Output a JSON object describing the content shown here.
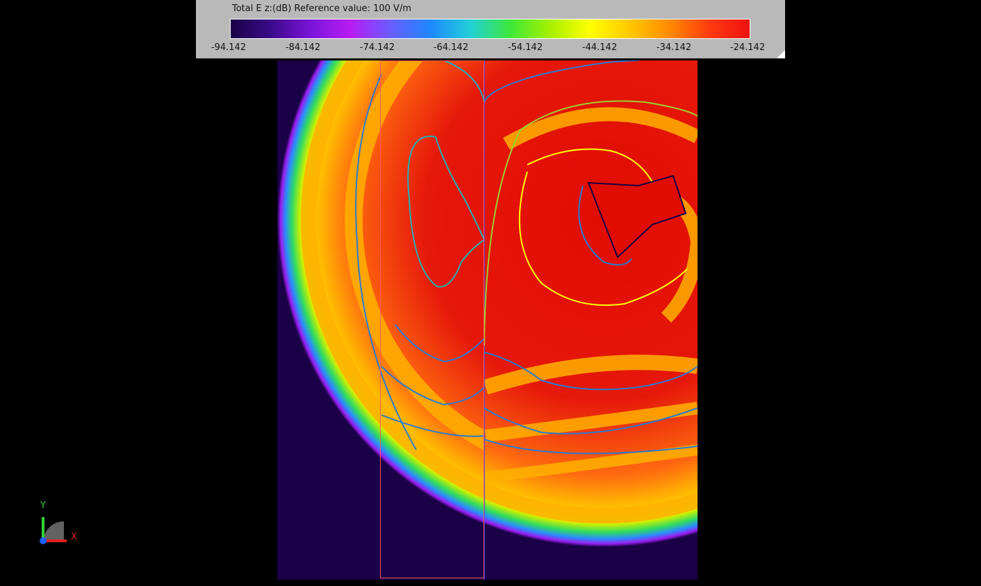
{
  "legend": {
    "title": "Total E z:(dB) Reference value: 100 V/m",
    "ticks": [
      "-94.142",
      "-84.142",
      "-74.142",
      "-64.142",
      "-54.142",
      "-44.142",
      "-34.142",
      "-24.142"
    ],
    "colormap": [
      "#1a0046",
      "#3b0a8a",
      "#7a14d8",
      "#b81cf2",
      "#6a5cff",
      "#1e88ff",
      "#22cfd8",
      "#3ce83a",
      "#a6f000",
      "#ffff00",
      "#ffc800",
      "#ff8a00",
      "#ff3a10",
      "#ee1010"
    ]
  },
  "axes": {
    "y_label": "Y",
    "x_label": "X",
    "y_color": "#35d335",
    "x_color": "#e02020",
    "z_color": "#2060ff"
  },
  "plot": {
    "background_color": "#1a0046",
    "peak_color": "#e00c00",
    "highlight_box_color": "#ff5a5a"
  }
}
